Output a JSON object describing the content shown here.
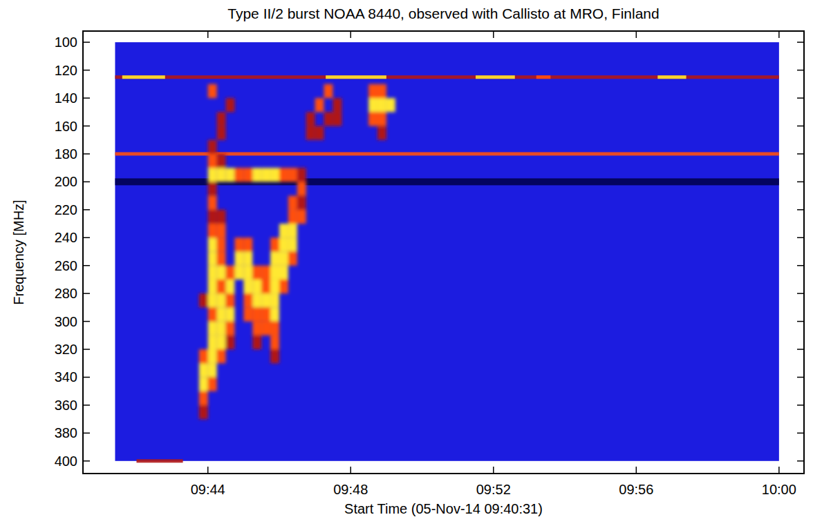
{
  "chart_data": {
    "type": "heatmap",
    "title": "Type II/2 burst NOAA 8440, observed with Callisto at MRO, Finland",
    "x_label": "Start Time (05-Nov-14 09:40:31)",
    "y_label": "Frequency [MHz]",
    "xlim": [
      580.5,
      600.7
    ],
    "ylim": [
      409,
      92
    ],
    "xticks": [
      {
        "value": 584,
        "label": "09:44"
      },
      {
        "value": 588,
        "label": "09:48"
      },
      {
        "value": 592,
        "label": "09:52"
      },
      {
        "value": 596,
        "label": "09:56"
      },
      {
        "value": 600,
        "label": "10:00"
      }
    ],
    "yticks": [
      100,
      120,
      140,
      160,
      180,
      200,
      220,
      240,
      260,
      280,
      300,
      320,
      340,
      360,
      380,
      400
    ],
    "spectrum_extent": {
      "time": [
        581.4,
        600
      ],
      "freq": [
        100,
        400
      ]
    },
    "time_step": 0.25,
    "freq_step": 10,
    "clim": [
      -1,
      3
    ],
    "cells": [
      [
        583.75,
        360,
        1
      ],
      [
        583.75,
        350,
        2
      ],
      [
        583.75,
        340,
        3
      ],
      [
        584.0,
        340,
        2
      ],
      [
        583.75,
        330,
        3
      ],
      [
        584.0,
        330,
        3
      ],
      [
        583.75,
        320,
        2
      ],
      [
        584.0,
        320,
        3
      ],
      [
        584.25,
        320,
        2
      ],
      [
        584.0,
        310,
        3
      ],
      [
        584.25,
        310,
        3
      ],
      [
        584.5,
        310,
        1
      ],
      [
        584.0,
        300,
        3
      ],
      [
        584.25,
        300,
        3
      ],
      [
        584.5,
        300,
        2
      ],
      [
        584.0,
        290,
        2
      ],
      [
        584.25,
        290,
        3
      ],
      [
        584.5,
        290,
        3
      ],
      [
        583.75,
        280,
        1
      ],
      [
        584.0,
        280,
        3
      ],
      [
        584.25,
        280,
        3
      ],
      [
        584.5,
        280,
        2
      ],
      [
        584.0,
        270,
        3
      ],
      [
        584.25,
        270,
        2
      ],
      [
        584.5,
        270,
        3
      ],
      [
        584.0,
        260,
        3
      ],
      [
        584.25,
        260,
        3
      ],
      [
        584.5,
        260,
        2
      ],
      [
        584.0,
        250,
        3
      ],
      [
        584.25,
        250,
        2
      ],
      [
        584.0,
        240,
        3
      ],
      [
        584.25,
        240,
        2
      ],
      [
        584.0,
        230,
        2
      ],
      [
        584.25,
        230,
        2
      ],
      [
        584.0,
        220,
        1
      ],
      [
        584.25,
        220,
        1
      ],
      [
        584.0,
        210,
        2
      ],
      [
        584.0,
        200,
        1
      ],
      [
        584.0,
        190,
        3
      ],
      [
        584.25,
        190,
        3
      ],
      [
        584.5,
        190,
        3
      ],
      [
        584.75,
        190,
        2
      ],
      [
        585.0,
        190,
        2
      ],
      [
        585.25,
        190,
        3
      ],
      [
        585.5,
        190,
        3
      ],
      [
        585.75,
        190,
        3
      ],
      [
        586.0,
        190,
        2
      ],
      [
        586.25,
        190,
        2
      ],
      [
        586.5,
        190,
        1
      ],
      [
        584.0,
        180,
        2
      ],
      [
        584.25,
        180,
        1
      ],
      [
        584.0,
        170,
        1
      ],
      [
        584.25,
        160,
        1
      ],
      [
        584.25,
        150,
        1
      ],
      [
        584.5,
        140,
        1
      ],
      [
        584.0,
        130,
        2
      ],
      [
        584.75,
        240,
        2
      ],
      [
        585.0,
        240,
        2
      ],
      [
        584.75,
        250,
        3
      ],
      [
        585.0,
        250,
        3
      ],
      [
        584.75,
        260,
        3
      ],
      [
        585.0,
        260,
        3
      ],
      [
        585.25,
        260,
        2
      ],
      [
        585.0,
        270,
        3
      ],
      [
        585.25,
        270,
        3
      ],
      [
        585.0,
        280,
        2
      ],
      [
        585.25,
        280,
        3
      ],
      [
        585.0,
        290,
        2
      ],
      [
        585.25,
        290,
        2
      ],
      [
        585.25,
        300,
        2
      ],
      [
        585.25,
        310,
        1
      ],
      [
        586.25,
        220,
        2
      ],
      [
        586.5,
        220,
        2
      ],
      [
        586.0,
        230,
        3
      ],
      [
        586.25,
        230,
        3
      ],
      [
        585.75,
        240,
        2
      ],
      [
        586.0,
        240,
        3
      ],
      [
        586.25,
        240,
        3
      ],
      [
        585.75,
        250,
        3
      ],
      [
        586.0,
        250,
        3
      ],
      [
        586.25,
        250,
        2
      ],
      [
        585.5,
        260,
        2
      ],
      [
        585.75,
        260,
        3
      ],
      [
        586.0,
        260,
        3
      ],
      [
        585.5,
        270,
        2
      ],
      [
        585.75,
        270,
        3
      ],
      [
        586.0,
        270,
        2
      ],
      [
        585.5,
        280,
        3
      ],
      [
        585.75,
        280,
        3
      ],
      [
        585.5,
        290,
        2
      ],
      [
        585.75,
        290,
        3
      ],
      [
        585.5,
        300,
        2
      ],
      [
        585.75,
        300,
        2
      ],
      [
        585.75,
        310,
        2
      ],
      [
        585.75,
        320,
        1
      ],
      [
        586.5,
        200,
        2
      ],
      [
        586.25,
        210,
        2
      ],
      [
        586.5,
        210,
        1
      ],
      [
        586.75,
        160,
        1
      ],
      [
        587.0,
        160,
        1
      ],
      [
        586.75,
        150,
        1
      ],
      [
        587.0,
        140,
        2
      ],
      [
        587.25,
        130,
        2
      ],
      [
        587.25,
        150,
        1
      ],
      [
        587.5,
        150,
        1
      ],
      [
        587.5,
        140,
        1
      ],
      [
        588.5,
        140,
        3
      ],
      [
        588.75,
        140,
        3
      ],
      [
        589.0,
        140,
        3
      ],
      [
        588.5,
        130,
        2
      ],
      [
        588.75,
        130,
        2
      ],
      [
        588.5,
        150,
        2
      ],
      [
        588.75,
        150,
        2
      ],
      [
        588.75,
        160,
        1
      ]
    ],
    "bands": [
      [
        125,
        581.4,
        600,
        1
      ],
      [
        125,
        581.6,
        582.8,
        3
      ],
      [
        125,
        587.3,
        589.0,
        3
      ],
      [
        125,
        591.5,
        592.6,
        3
      ],
      [
        125,
        593.2,
        593.6,
        2
      ],
      [
        125,
        596.6,
        597.4,
        3
      ],
      [
        180,
        581.4,
        600,
        2
      ],
      [
        200,
        581.4,
        600,
        -1
      ],
      [
        400,
        582.0,
        583.3,
        1
      ]
    ]
  }
}
